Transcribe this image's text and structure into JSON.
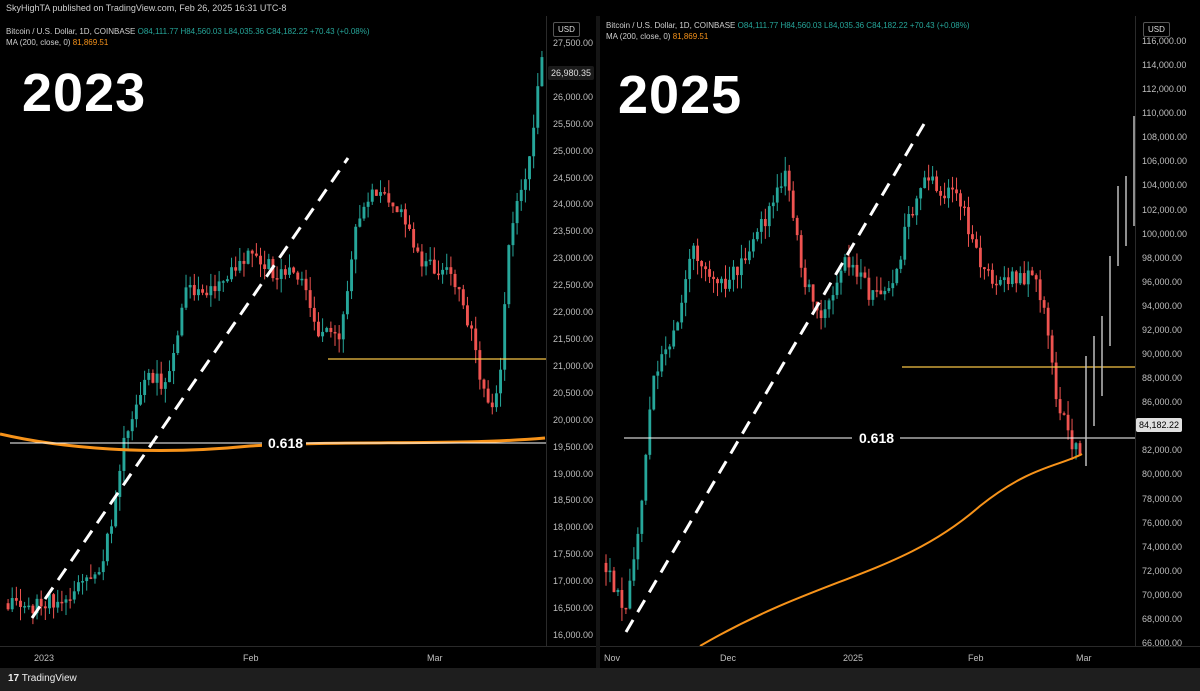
{
  "publish_line": "SkyHighTA published on TradingView.com, Feb 26, 2025 16:31 UTC-8",
  "footer": {
    "brand": "TradingView",
    "logo_mark": "17"
  },
  "left": {
    "year_label": "2023",
    "currency": "USD",
    "legend_line1_name": "Bitcoin / U.S. Dollar, 1D, COINBASE",
    "legend_line1_ohlc": "O84,111.77  H84,560.03  L84,035.36  C84,182.22  +70.43 (+0.08%)",
    "legend_line2_name": "MA (200, close, 0)",
    "legend_line2_val": "81,869.51",
    "fib_label": "0.618",
    "price_box": "26,980.35",
    "y_ticks": [
      "27,500.00",
      "26,500.00",
      "26,000.00",
      "25,500.00",
      "25,000.00",
      "24,500.00",
      "24,000.00",
      "23,500.00",
      "23,000.00",
      "22,500.00",
      "22,000.00",
      "21,500.00",
      "21,000.00",
      "20,500.00",
      "20,000.00",
      "19,500.00",
      "19,000.00",
      "18,500.00",
      "18,000.00",
      "17,500.00",
      "17,000.00",
      "16,500.00",
      "16,000.00"
    ],
    "x_ticks": [
      "2023",
      "Feb",
      "Mar"
    ],
    "colors": {
      "up": "#26a69a",
      "down": "#ef5350",
      "ma": "#f7931a",
      "support": "#f6c445",
      "fib": "#ffffff"
    }
  },
  "right": {
    "year_label": "2025",
    "currency": "USD",
    "legend_line1_name": "Bitcoin / U.S. Dollar, 1D, COINBASE",
    "legend_line1_ohlc": "O84,111.77  H84,560.03  L84,035.36  C84,182.22  +70.43 (+0.08%)",
    "legend_line2_name": "MA (200, close, 0)",
    "legend_line2_val": "81,869.51",
    "fib_label": "0.618",
    "price_box": "84,182.22",
    "y_ticks": [
      "116,000.00",
      "114,000.00",
      "112,000.00",
      "110,000.00",
      "108,000.00",
      "106,000.00",
      "104,000.00",
      "102,000.00",
      "100,000.00",
      "98,000.00",
      "96,000.00",
      "94,000.00",
      "92,000.00",
      "90,000.00",
      "88,000.00",
      "86,000.00",
      "84,000.00",
      "82,000.00",
      "80,000.00",
      "78,000.00",
      "76,000.00",
      "74,000.00",
      "72,000.00",
      "70,000.00",
      "68,000.00",
      "66,000.00"
    ],
    "x_ticks": [
      "Nov",
      "Dec",
      "2025",
      "Feb",
      "Mar"
    ],
    "colors": {
      "up": "#26a69a",
      "down": "#ef5350",
      "ma": "#f7931a",
      "support": "#f6c445",
      "fib": "#ffffff",
      "projection": "#bdbdbd"
    }
  }
}
